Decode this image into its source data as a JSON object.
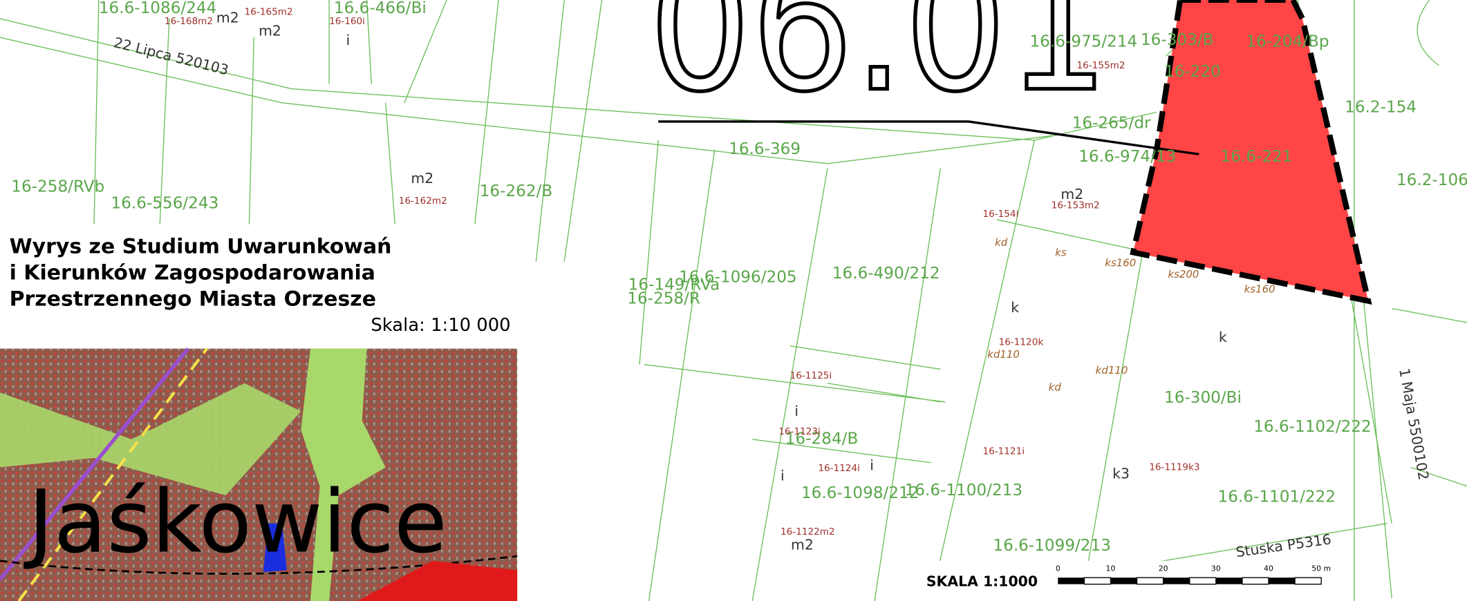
{
  "map_sheet": "06.01",
  "legend": {
    "title_lines": [
      "Wyrys ze Studium Uwarunkowań",
      "i Kierunków Zagospodarowania",
      "Przestrzennego Miasta Orzesze"
    ],
    "scale": "Skala: 1:10 000"
  },
  "inset": {
    "place": "Jaśkowice"
  },
  "parcels": [
    "16.6-1086/244",
    "16.6-466/Bi",
    "16.6-975/214",
    "16-303/B",
    "16-220",
    "16-204/Bp",
    "16.2-154",
    "16-265/dr",
    "16.6-369",
    "16.6-974/13",
    "16.6-221",
    "16-258/RVb",
    "16.6-556/243",
    "16-262/B",
    "16.6-1096/205",
    "16-149/RVa",
    "16-258/R",
    "16.6-490/212",
    "16-300/Bi",
    "16.6-1102/222",
    "16-284/B",
    "16.6-1098/212",
    "16.6-1100/213",
    "16.6-1101/222",
    "16.6-1099/213",
    "16.2-106"
  ],
  "point_labels": [
    "16-168m2",
    "16-165m2",
    "16-160i",
    "16-162m2",
    "16-155m2",
    "16-153m2",
    "16-154i",
    "16-1120k",
    "16-1125i",
    "16-1123i",
    "16-1124i",
    "16-1121i",
    "16-1119k3",
    "16-1122m2"
  ],
  "use_labels": [
    "kd",
    "ks",
    "ks160",
    "ks200",
    "ks160",
    "kd110",
    "kd110",
    "kd"
  ],
  "symbols": [
    "m2",
    "m2",
    "m2",
    "i",
    "m2",
    "k",
    "i",
    "i",
    "k3",
    "m2",
    "k",
    "i"
  ],
  "streets": [
    "22 Lipca 520103",
    "1 Maja 5500102",
    "Stuska P5316"
  ],
  "scale_bar": {
    "label": "SKALA 1:1000",
    "ticks": [
      "0",
      "10",
      "20",
      "30",
      "40",
      "50 m"
    ]
  }
}
